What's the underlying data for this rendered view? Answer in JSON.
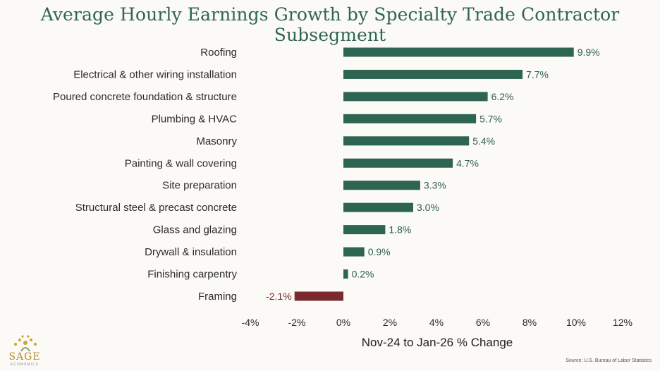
{
  "chart_data": {
    "type": "bar",
    "orientation": "horizontal",
    "title": "Average Hourly Earnings Growth by Specialty Trade Contractor Subsegment",
    "xlabel": "Nov-24 to Jan-26 % Change",
    "ylabel": "",
    "xlim": [
      -4,
      12
    ],
    "xticks": [
      -4,
      -2,
      0,
      2,
      4,
      6,
      8,
      10,
      12
    ],
    "xtick_labels": [
      "-4%",
      "-2%",
      "0%",
      "2%",
      "4%",
      "6%",
      "8%",
      "10%",
      "12%"
    ],
    "categories": [
      "Roofing",
      "Electrical & other wiring installation",
      "Poured concrete foundation & structure",
      "Plumbing & HVAC",
      "Masonry",
      "Painting & wall covering",
      "Site preparation",
      "Structural steel & precast concrete",
      "Glass and glazing",
      "Drywall & insulation",
      "Finishing carpentry",
      "Framing"
    ],
    "values": [
      9.9,
      7.7,
      6.2,
      5.7,
      5.4,
      4.7,
      3.3,
      3.0,
      1.8,
      0.9,
      0.2,
      -2.1
    ],
    "value_labels": [
      "9.9%",
      "7.7%",
      "6.2%",
      "5.7%",
      "5.4%",
      "4.7%",
      "3.3%",
      "3.0%",
      "1.8%",
      "0.9%",
      "0.2%",
      "-2.1%"
    ],
    "grid": false,
    "colors": {
      "positive": "#2e6452",
      "negative": "#7a2a2e"
    }
  },
  "branding": {
    "logo_text": "SAGE",
    "logo_subtext": "ECONOMICS"
  },
  "source": "Source: U.S. Bureau of Labor Statistics"
}
